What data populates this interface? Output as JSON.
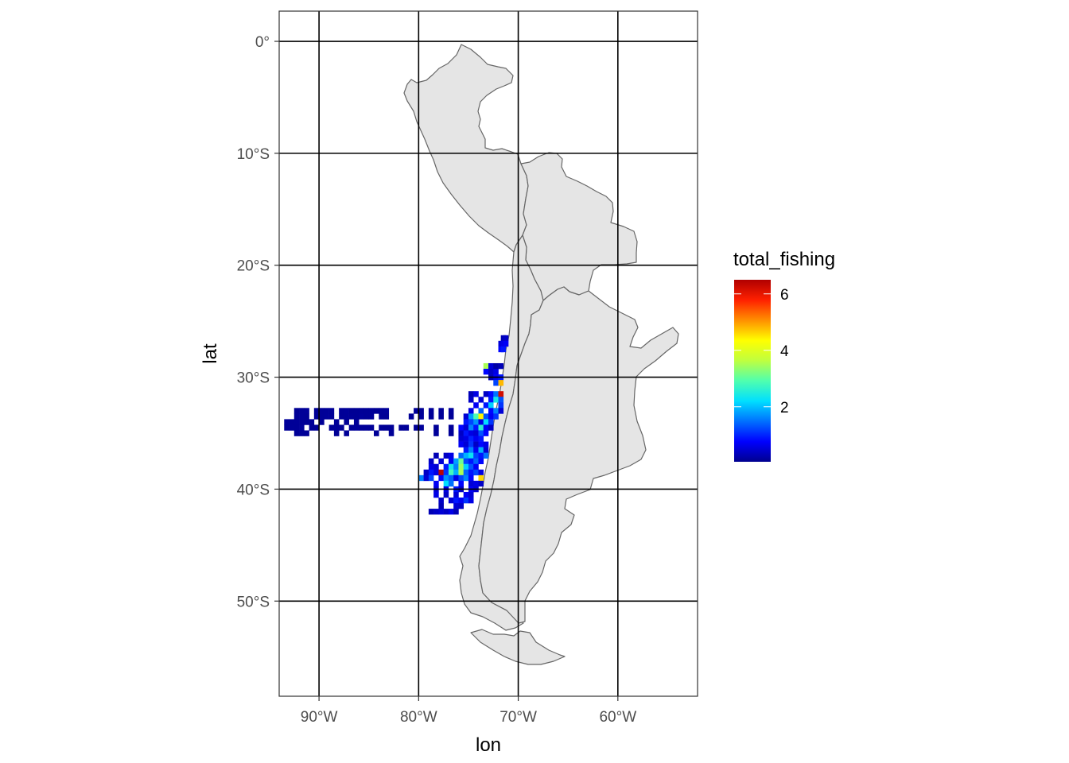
{
  "chart_data": {
    "type": "heatmap",
    "geom": "raster over basemap",
    "title": "",
    "xlabel": "lon",
    "ylabel": "lat",
    "xlim": [
      -94,
      -52
    ],
    "ylim": [
      -58.5,
      2.7
    ],
    "x_ticks": [
      {
        "value": -90,
        "label": "90°W"
      },
      {
        "value": -80,
        "label": "80°W"
      },
      {
        "value": -70,
        "label": "70°W"
      },
      {
        "value": -60,
        "label": "60°W"
      }
    ],
    "y_ticks": [
      {
        "value": 0,
        "label": "0°"
      },
      {
        "value": -10,
        "label": "10°S"
      },
      {
        "value": -20,
        "label": "20°S"
      },
      {
        "value": -30,
        "label": "30°S"
      },
      {
        "value": -40,
        "label": "40°S"
      },
      {
        "value": -50,
        "label": "50°S"
      }
    ],
    "grid": true,
    "fill_variable": "total_fishing",
    "fill_scale": {
      "type": "continuous",
      "palette": "jet",
      "colors": [
        "#00008F",
        "#0000FF",
        "#0070FF",
        "#00DFFF",
        "#4FFFAF",
        "#BFFF3F",
        "#FFFF00",
        "#FF8F00",
        "#FF2000",
        "#B00000"
      ],
      "limits": [
        0.05,
        6.5
      ],
      "breaks": [
        2,
        4,
        6
      ],
      "labels": [
        "2",
        "4",
        "6"
      ]
    },
    "legend": {
      "title": "total_fishing",
      "position": "right"
    },
    "basemap": {
      "fill": "#e5e5e5",
      "stroke": "#666666",
      "countries": [
        "Peru",
        "Bolivia",
        "Chile",
        "Argentina"
      ]
    },
    "cell_size_deg": 0.5,
    "cells": [
      [
        -71.5,
        -26.5,
        0.3
      ],
      [
        -71.25,
        -26.5,
        0.4
      ],
      [
        -71.75,
        -27.0,
        0.5
      ],
      [
        -71.5,
        -27.0,
        0.6
      ],
      [
        -71.25,
        -27.0,
        0.7
      ],
      [
        -71.75,
        -27.5,
        0.8
      ],
      [
        -71.5,
        -27.5,
        0.9
      ],
      [
        -73.25,
        -29.0,
        3.5
      ],
      [
        -72.75,
        -29.0,
        0.5
      ],
      [
        -72.25,
        -29.0,
        0.2
      ],
      [
        -71.75,
        -29.0,
        0.3
      ],
      [
        -73.25,
        -29.5,
        0.8
      ],
      [
        -72.75,
        -29.5,
        0.4
      ],
      [
        -72.25,
        -29.5,
        0.6
      ],
      [
        -72.75,
        -30.0,
        0.3
      ],
      [
        -72.25,
        -30.0,
        0.7
      ],
      [
        -71.75,
        -30.0,
        0.9
      ],
      [
        -72.25,
        -30.5,
        1.2
      ],
      [
        -71.75,
        -30.5,
        4.8
      ],
      [
        -74.75,
        -31.5,
        0.3
      ],
      [
        -74.25,
        -31.5,
        0.6
      ],
      [
        -73.25,
        -31.5,
        0.4
      ],
      [
        -72.75,
        -31.5,
        0.8
      ],
      [
        -72.25,
        -31.5,
        1.5
      ],
      [
        -71.75,
        -31.5,
        6.2
      ],
      [
        -74.75,
        -32.0,
        0.4
      ],
      [
        -73.75,
        -32.0,
        0.5
      ],
      [
        -72.75,
        -32.0,
        0.9
      ],
      [
        -72.25,
        -32.0,
        2.4
      ],
      [
        -71.75,
        -32.0,
        1.3
      ],
      [
        -74.25,
        -32.5,
        0.7
      ],
      [
        -73.25,
        -32.5,
        0.9
      ],
      [
        -72.75,
        -32.5,
        2.1
      ],
      [
        -71.75,
        -32.5,
        1.1
      ],
      [
        -74.75,
        -33.0,
        0.6
      ],
      [
        -73.75,
        -33.0,
        1.4
      ],
      [
        -72.75,
        -33.0,
        0.8
      ],
      [
        -72.25,
        -33.0,
        1.6
      ],
      [
        -71.75,
        -33.0,
        0.5
      ],
      [
        -75.25,
        -33.5,
        0.5
      ],
      [
        -74.75,
        -33.5,
        1.8
      ],
      [
        -74.25,
        -33.5,
        2.9
      ],
      [
        -73.75,
        -33.5,
        4.4
      ],
      [
        -73.25,
        -33.5,
        1.3
      ],
      [
        -72.75,
        -33.5,
        0.7
      ],
      [
        -72.25,
        -33.5,
        1.1
      ],
      [
        -75.25,
        -34.0,
        0.9
      ],
      [
        -74.75,
        -34.0,
        1.2
      ],
      [
        -74.25,
        -34.0,
        1.7
      ],
      [
        -73.75,
        -34.0,
        0.6
      ],
      [
        -73.25,
        -34.0,
        2.2
      ],
      [
        -72.75,
        -34.0,
        1.1
      ],
      [
        -75.75,
        -34.5,
        0.8
      ],
      [
        -75.25,
        -34.5,
        0.5
      ],
      [
        -74.75,
        -34.5,
        1.6
      ],
      [
        -74.25,
        -34.5,
        0.9
      ],
      [
        -73.75,
        -34.5,
        2.6
      ],
      [
        -73.25,
        -34.5,
        0.7
      ],
      [
        -72.75,
        -34.5,
        0.4
      ],
      [
        -75.75,
        -35.0,
        0.4
      ],
      [
        -75.25,
        -35.0,
        0.9
      ],
      [
        -74.75,
        -35.0,
        0.6
      ],
      [
        -74.25,
        -35.0,
        0.5
      ],
      [
        -73.75,
        -35.0,
        1.3
      ],
      [
        -73.25,
        -35.0,
        0.8
      ],
      [
        -75.75,
        -35.5,
        0.5
      ],
      [
        -75.25,
        -35.5,
        0.6
      ],
      [
        -74.75,
        -35.5,
        1.0
      ],
      [
        -74.25,
        -35.5,
        0.7
      ],
      [
        -73.75,
        -35.5,
        0.9
      ],
      [
        -75.75,
        -36.0,
        0.7
      ],
      [
        -75.25,
        -36.0,
        0.5
      ],
      [
        -74.75,
        -36.0,
        1.1
      ],
      [
        -74.25,
        -36.0,
        0.4
      ],
      [
        -73.75,
        -36.0,
        0.8
      ],
      [
        -73.25,
        -36.0,
        0.6
      ],
      [
        -75.25,
        -36.5,
        0.9
      ],
      [
        -74.75,
        -36.5,
        1.6
      ],
      [
        -74.25,
        -36.5,
        0.7
      ],
      [
        -73.75,
        -36.5,
        1.9
      ],
      [
        -73.25,
        -36.5,
        0.5
      ],
      [
        -78.25,
        -37.0,
        0.3
      ],
      [
        -77.25,
        -37.0,
        0.4
      ],
      [
        -76.75,
        -37.0,
        0.6
      ],
      [
        -75.75,
        -37.0,
        1.4
      ],
      [
        -75.25,
        -37.0,
        1.9
      ],
      [
        -74.75,
        -37.0,
        2.3
      ],
      [
        -74.25,
        -37.0,
        1.2
      ],
      [
        -73.75,
        -37.0,
        0.9
      ],
      [
        -73.25,
        -37.0,
        1.5
      ],
      [
        -78.75,
        -37.5,
        0.4
      ],
      [
        -77.75,
        -37.5,
        0.5
      ],
      [
        -76.75,
        -37.5,
        0.7
      ],
      [
        -76.25,
        -37.5,
        1.8
      ],
      [
        -75.75,
        -37.5,
        3.1
      ],
      [
        -75.25,
        -37.5,
        1.2
      ],
      [
        -74.75,
        -37.5,
        0.9
      ],
      [
        -74.25,
        -37.5,
        1.4
      ],
      [
        -73.75,
        -37.5,
        0.8
      ],
      [
        -78.75,
        -38.0,
        0.6
      ],
      [
        -78.25,
        -38.0,
        0.5
      ],
      [
        -77.25,
        -38.0,
        0.9
      ],
      [
        -76.75,
        -38.0,
        2.4
      ],
      [
        -76.25,
        -38.0,
        1.6
      ],
      [
        -75.75,
        -38.0,
        3.4
      ],
      [
        -75.25,
        -38.0,
        2.1
      ],
      [
        -74.75,
        -38.0,
        1.3
      ],
      [
        -74.25,
        -38.0,
        0.7
      ],
      [
        -79.25,
        -38.5,
        0.4
      ],
      [
        -78.75,
        -38.5,
        0.9
      ],
      [
        -78.25,
        -38.5,
        0.6
      ],
      [
        -77.75,
        -38.5,
        6.4
      ],
      [
        -77.25,
        -38.5,
        1.1
      ],
      [
        -76.75,
        -38.5,
        2.8
      ],
      [
        -76.25,
        -38.5,
        1.9
      ],
      [
        -75.75,
        -38.5,
        3.5
      ],
      [
        -75.25,
        -38.5,
        1.4
      ],
      [
        -74.75,
        -38.5,
        0.9
      ],
      [
        -74.25,
        -38.5,
        1.2
      ],
      [
        -73.75,
        -38.5,
        0.6
      ],
      [
        -79.75,
        -39.0,
        1.6
      ],
      [
        -79.25,
        -39.0,
        0.5
      ],
      [
        -78.75,
        -39.0,
        1.2
      ],
      [
        -77.75,
        -39.0,
        0.8
      ],
      [
        -77.25,
        -39.0,
        1.7
      ],
      [
        -76.75,
        -39.0,
        1.4
      ],
      [
        -76.25,
        -39.0,
        0.6
      ],
      [
        -75.75,
        -39.0,
        1.2
      ],
      [
        -75.25,
        -39.0,
        1.6
      ],
      [
        -74.75,
        -39.0,
        0.8
      ],
      [
        -73.75,
        -39.0,
        4.6
      ],
      [
        -78.25,
        -39.5,
        0.7
      ],
      [
        -77.25,
        -39.5,
        2.2
      ],
      [
        -76.75,
        -39.5,
        1.5
      ],
      [
        -75.75,
        -39.5,
        0.8
      ],
      [
        -74.75,
        -39.5,
        0.5
      ],
      [
        -74.25,
        -39.5,
        0.6
      ],
      [
        -73.75,
        -39.5,
        0.4
      ],
      [
        -78.25,
        -40.0,
        0.5
      ],
      [
        -77.25,
        -40.0,
        0.6
      ],
      [
        -76.25,
        -40.0,
        0.9
      ],
      [
        -75.75,
        -40.0,
        0.4
      ],
      [
        -74.75,
        -40.0,
        0.7
      ],
      [
        -74.25,
        -40.0,
        0.5
      ],
      [
        -78.25,
        -40.5,
        0.6
      ],
      [
        -77.25,
        -40.5,
        0.4
      ],
      [
        -76.25,
        -40.5,
        0.5
      ],
      [
        -75.25,
        -40.5,
        0.7
      ],
      [
        -74.75,
        -40.5,
        0.5
      ],
      [
        -77.75,
        -41.0,
        0.4
      ],
      [
        -76.75,
        -41.0,
        0.5
      ],
      [
        -76.25,
        -41.0,
        0.9
      ],
      [
        -75.75,
        -41.0,
        0.7
      ],
      [
        -75.25,
        -41.0,
        1.1
      ],
      [
        -74.75,
        -41.0,
        0.6
      ],
      [
        -77.75,
        -41.5,
        0.3
      ],
      [
        -76.25,
        -41.5,
        0.5
      ],
      [
        -75.75,
        -41.5,
        0.4
      ],
      [
        -78.75,
        -42.0,
        0.3
      ],
      [
        -78.25,
        -42.0,
        0.4
      ],
      [
        -77.75,
        -42.0,
        0.5
      ],
      [
        -77.25,
        -42.0,
        0.4
      ],
      [
        -76.75,
        -42.0,
        0.6
      ],
      [
        -76.25,
        -42.0,
        0.3
      ],
      [
        -92.25,
        -33.0,
        0.08
      ],
      [
        -91.75,
        -33.0,
        0.1
      ],
      [
        -91.25,
        -33.0,
        0.12
      ],
      [
        -90.25,
        -33.0,
        0.09
      ],
      [
        -89.75,
        -33.0,
        0.1
      ],
      [
        -89.25,
        -33.0,
        0.11
      ],
      [
        -88.75,
        -33.0,
        0.1
      ],
      [
        -87.75,
        -33.0,
        0.1
      ],
      [
        -87.25,
        -33.0,
        0.12
      ],
      [
        -86.75,
        -33.0,
        0.08
      ],
      [
        -86.25,
        -33.0,
        0.09
      ],
      [
        -85.75,
        -33.0,
        0.1
      ],
      [
        -85.25,
        -33.0,
        0.1
      ],
      [
        -84.75,
        -33.0,
        0.11
      ],
      [
        -84.25,
        -33.0,
        0.09
      ],
      [
        -83.75,
        -33.0,
        0.1
      ],
      [
        -83.25,
        -33.0,
        0.12
      ],
      [
        -80.25,
        -33.0,
        0.1
      ],
      [
        -79.75,
        -33.0,
        0.09
      ],
      [
        -78.75,
        -33.0,
        0.11
      ],
      [
        -77.75,
        -33.0,
        0.1
      ],
      [
        -76.75,
        -33.0,
        0.12
      ],
      [
        -92.25,
        -33.5,
        0.1
      ],
      [
        -91.75,
        -33.5,
        0.11
      ],
      [
        -91.25,
        -33.5,
        0.09
      ],
      [
        -90.25,
        -33.5,
        0.1
      ],
      [
        -89.75,
        -33.5,
        0.1
      ],
      [
        -89.25,
        -33.5,
        0.12
      ],
      [
        -88.75,
        -33.5,
        0.1
      ],
      [
        -87.75,
        -33.5,
        0.1
      ],
      [
        -87.25,
        -33.5,
        0.11
      ],
      [
        -86.75,
        -33.5,
        0.1
      ],
      [
        -86.25,
        -33.5,
        0.09
      ],
      [
        -85.75,
        -33.5,
        0.12
      ],
      [
        -85.25,
        -33.5,
        0.1
      ],
      [
        -84.75,
        -33.5,
        0.11
      ],
      [
        -83.75,
        -33.5,
        0.1
      ],
      [
        -83.25,
        -33.5,
        0.09
      ],
      [
        -80.75,
        -33.5,
        0.1
      ],
      [
        -79.75,
        -33.5,
        0.12
      ],
      [
        -78.75,
        -33.5,
        0.1
      ],
      [
        -77.75,
        -33.5,
        0.11
      ],
      [
        -76.75,
        -33.5,
        0.1
      ],
      [
        -93.25,
        -34.0,
        0.12
      ],
      [
        -92.75,
        -34.0,
        0.1
      ],
      [
        -92.25,
        -34.0,
        0.11
      ],
      [
        -91.75,
        -34.0,
        0.1
      ],
      [
        -91.25,
        -34.0,
        0.09
      ],
      [
        -90.75,
        -34.0,
        0.1
      ],
      [
        -89.75,
        -34.0,
        0.1
      ],
      [
        -88.25,
        -34.0,
        0.11
      ],
      [
        -87.25,
        -34.0,
        0.09
      ],
      [
        -86.25,
        -34.0,
        0.1
      ],
      [
        -93.25,
        -34.5,
        0.1
      ],
      [
        -92.75,
        -34.5,
        0.11
      ],
      [
        -92.25,
        -34.5,
        0.1
      ],
      [
        -91.75,
        -34.5,
        0.12
      ],
      [
        -90.75,
        -34.5,
        0.1
      ],
      [
        -90.25,
        -34.5,
        0.09
      ],
      [
        -88.75,
        -34.5,
        0.1
      ],
      [
        -88.25,
        -34.5,
        0.11
      ],
      [
        -87.75,
        -34.5,
        0.1
      ],
      [
        -86.75,
        -34.5,
        0.1
      ],
      [
        -86.25,
        -34.5,
        0.12
      ],
      [
        -85.75,
        -34.5,
        0.1
      ],
      [
        -85.25,
        -34.5,
        0.11
      ],
      [
        -84.75,
        -34.5,
        0.1
      ],
      [
        -83.75,
        -34.5,
        0.1
      ],
      [
        -83.25,
        -34.5,
        0.09
      ],
      [
        -82.75,
        -34.5,
        0.1
      ],
      [
        -81.75,
        -34.5,
        0.1
      ],
      [
        -81.25,
        -34.5,
        0.11
      ],
      [
        -80.25,
        -34.5,
        0.1
      ],
      [
        -79.75,
        -34.5,
        0.12
      ],
      [
        -78.25,
        -34.5,
        0.1
      ],
      [
        -76.75,
        -34.5,
        0.11
      ],
      [
        -92.25,
        -35.0,
        0.11
      ],
      [
        -91.75,
        -35.0,
        0.1
      ],
      [
        -91.25,
        -35.0,
        0.1
      ],
      [
        -88.25,
        -35.0,
        0.09
      ],
      [
        -87.25,
        -35.0,
        0.1
      ],
      [
        -84.25,
        -35.0,
        0.1
      ],
      [
        -82.75,
        -35.0,
        0.1
      ],
      [
        -78.25,
        -35.0,
        0.12
      ],
      [
        -76.75,
        -35.0,
        0.1
      ]
    ]
  }
}
